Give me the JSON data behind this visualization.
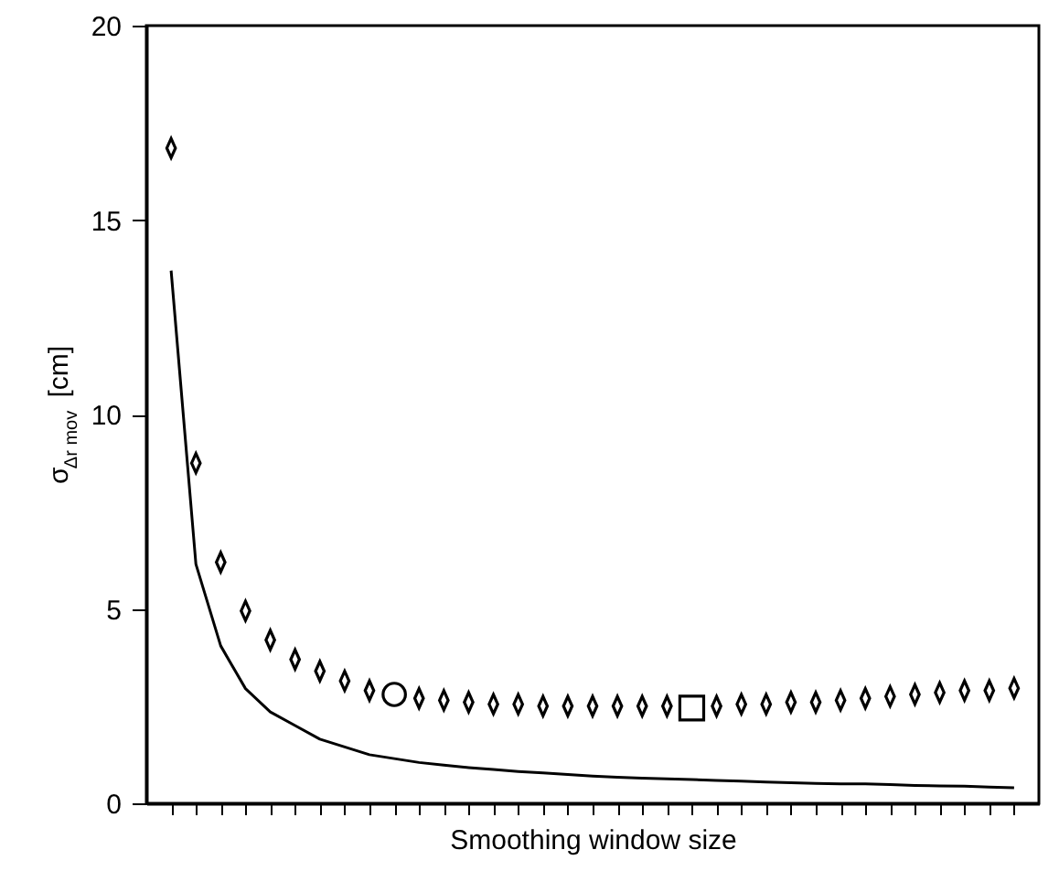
{
  "chart_data": {
    "type": "scatter",
    "xlabel": "Smoothing window size",
    "ylabel": "σ$_{Δr mov}$ [cm]",
    "categories": [
      null,
      null,
      null,
      null,
      null,
      null,
      null,
      null,
      null,
      null,
      null,
      null,
      null,
      null,
      null,
      null,
      null,
      null,
      null,
      null,
      null,
      null,
      null,
      null,
      null,
      null,
      null,
      null,
      null,
      null,
      null,
      null,
      null,
      null,
      null
    ],
    "ylim": [
      0,
      20
    ],
    "yticks": [
      0,
      5,
      10,
      15,
      20
    ],
    "grid": false,
    "tick_labels": "y",
    "series": [
      {
        "type": "line",
        "color": "#000000",
        "marker": "none",
        "line_style": "solid",
        "values": [
          13.7,
          6.15,
          4.05,
          2.95,
          2.35,
          2.0,
          1.65,
          1.45,
          1.25,
          1.15,
          1.05,
          0.98,
          0.92,
          0.87,
          0.82,
          0.78,
          0.74,
          0.7,
          0.67,
          0.65,
          0.63,
          0.61,
          0.59,
          0.57,
          0.55,
          0.53,
          0.51,
          0.5,
          0.5,
          0.48,
          0.46,
          0.45,
          0.44,
          0.42,
          0.4
        ]
      },
      {
        "color": "#000000",
        "marker": "diamond",
        "values": [
          16.85,
          8.75,
          6.2,
          4.95,
          4.2,
          3.7,
          3.4,
          3.15,
          2.9,
          null,
          2.7,
          2.65,
          2.6,
          2.55,
          2.55,
          2.5,
          2.5,
          2.5,
          2.5,
          2.5,
          2.5,
          null,
          2.5,
          2.55,
          2.55,
          2.6,
          2.6,
          2.65,
          2.7,
          2.75,
          2.8,
          2.85,
          2.9,
          2.9,
          2.96
        ]
      },
      {
        "color": "#000000",
        "marker": "circle",
        "values": [
          null,
          null,
          null,
          null,
          null,
          null,
          null,
          null,
          null,
          2.8,
          null,
          null,
          null,
          null,
          null,
          null,
          null,
          null,
          null,
          null,
          null,
          null,
          null,
          null,
          null,
          null,
          null,
          null,
          null,
          null,
          null,
          null,
          null,
          null,
          null
        ]
      },
      {
        "color": "#000000",
        "marker": "square",
        "values": [
          null,
          null,
          null,
          null,
          null,
          null,
          null,
          null,
          null,
          null,
          null,
          null,
          null,
          null,
          null,
          null,
          null,
          null,
          null,
          null,
          null,
          2.45,
          null,
          null,
          null,
          null,
          null,
          null,
          null,
          null,
          null,
          null,
          null,
          null,
          null
        ]
      }
    ]
  }
}
